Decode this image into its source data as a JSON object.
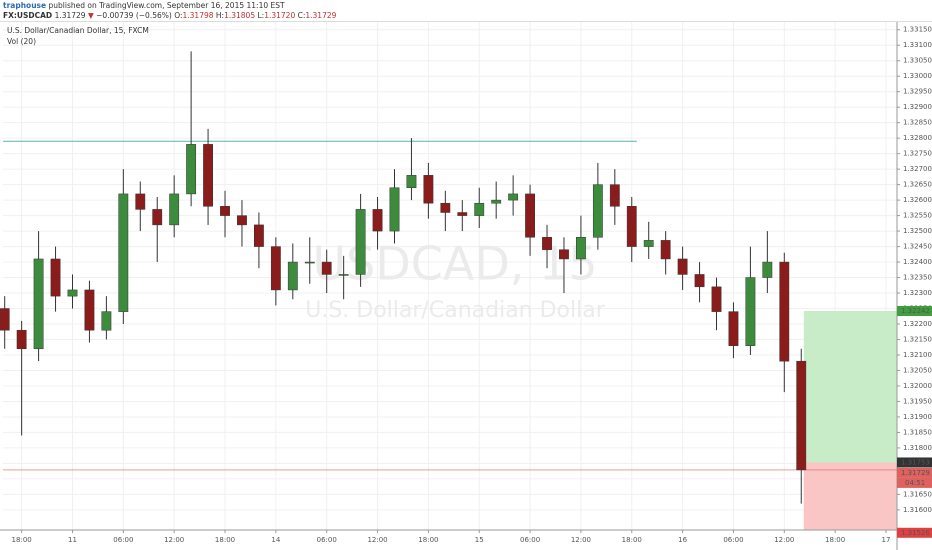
{
  "chart_data": {
    "type": "candlestick",
    "header": {
      "author": "traphouse",
      "published": "published on TradingView.com, September 16, 2015 11:10 EST",
      "symbol": "FX:USDCAD",
      "last": "1.31729",
      "arrow": "▼",
      "change": "−0.00739 (−0.56%)",
      "o_label": "O:",
      "o": "1.31798",
      "h_label": "H:",
      "h": "1.31805",
      "l_label": "L:",
      "l": "1.31720",
      "c_label": "C:",
      "c": "1.31729"
    },
    "title": "U.S. Dollar/Canadian Dollar, 15, FXCM",
    "indicator": "Vol (20)",
    "watermark": [
      "USDCAD, 15",
      "U.S. Dollar/Canadian Dollar"
    ],
    "up_color": "#3d8b3d",
    "down_color": "#8b1c1c",
    "x": [
      -2,
      0,
      2,
      4,
      6,
      8,
      10,
      12,
      14,
      16,
      18,
      20,
      22,
      24,
      26,
      28,
      30,
      32,
      34,
      36,
      38,
      40,
      42,
      44,
      46,
      48,
      50,
      52,
      54,
      56,
      58,
      60,
      62,
      64,
      66,
      68,
      70,
      72,
      74,
      76,
      78,
      80,
      82,
      84,
      86,
      88,
      90,
      92
    ],
    "open": [
      1.3225,
      1.3218,
      1.3212,
      1.3241,
      1.3229,
      1.3231,
      1.3218,
      1.3224,
      1.3262,
      1.3257,
      1.3252,
      1.3262,
      1.3278,
      1.3258,
      1.3255,
      1.3252,
      1.3245,
      1.3231,
      1.324,
      1.324,
      1.3236,
      1.3236,
      1.3257,
      1.325,
      1.3264,
      1.3268,
      1.3259,
      1.3256,
      1.3255,
      1.3259,
      1.326,
      1.3262,
      1.3248,
      1.3244,
      1.3241,
      1.3248,
      1.3265,
      1.3258,
      1.3245,
      1.3247,
      1.3241,
      1.3236,
      1.3232,
      1.3224,
      1.3213,
      1.3235,
      1.324,
      1.3208
    ],
    "high": [
      1.3229,
      1.3221,
      1.325,
      1.3245,
      1.3236,
      1.3234,
      1.3229,
      1.327,
      1.3266,
      1.3261,
      1.3268,
      1.3308,
      1.3283,
      1.3263,
      1.326,
      1.3256,
      1.3248,
      1.3246,
      1.3248,
      1.3244,
      1.3242,
      1.3262,
      1.3261,
      1.327,
      1.328,
      1.3272,
      1.3263,
      1.326,
      1.3264,
      1.3266,
      1.3268,
      1.3265,
      1.3252,
      1.3248,
      1.3255,
      1.3272,
      1.327,
      1.3261,
      1.3253,
      1.325,
      1.3245,
      1.324,
      1.3235,
      1.3227,
      1.3245,
      1.325,
      1.3243,
      1.3212
    ],
    "low": [
      1.3212,
      1.3184,
      1.3208,
      1.3224,
      1.3225,
      1.3214,
      1.3215,
      1.322,
      1.325,
      1.324,
      1.3248,
      1.3258,
      1.3252,
      1.3248,
      1.3245,
      1.3238,
      1.3226,
      1.3228,
      1.3233,
      1.323,
      1.3228,
      1.3232,
      1.3244,
      1.3246,
      1.326,
      1.3254,
      1.325,
      1.325,
      1.3251,
      1.3254,
      1.3255,
      1.3242,
      1.3238,
      1.323,
      1.3236,
      1.3244,
      1.3252,
      1.324,
      1.3241,
      1.3236,
      1.3231,
      1.3227,
      1.3218,
      1.3209,
      1.321,
      1.323,
      1.3198,
      1.3162
    ],
    "close": [
      1.3218,
      1.3212,
      1.3241,
      1.3229,
      1.3231,
      1.3218,
      1.3224,
      1.3262,
      1.3257,
      1.3252,
      1.3262,
      1.3278,
      1.3258,
      1.3255,
      1.3252,
      1.3245,
      1.3231,
      1.324,
      1.324,
      1.3236,
      1.3236,
      1.3257,
      1.325,
      1.3264,
      1.3268,
      1.3259,
      1.3256,
      1.3255,
      1.3259,
      1.326,
      1.3262,
      1.3248,
      1.3244,
      1.3241,
      1.3248,
      1.3265,
      1.3258,
      1.3245,
      1.3247,
      1.3241,
      1.3236,
      1.3232,
      1.3224,
      1.3213,
      1.3235,
      1.324,
      1.3208,
      1.31729
    ],
    "xlim": [
      -2.2,
      103.3
    ],
    "xticks": [
      {
        "value": 0,
        "label": "18:00"
      },
      {
        "value": 6,
        "label": "11"
      },
      {
        "value": 12,
        "label": "06:00"
      },
      {
        "value": 18,
        "label": "12:00"
      },
      {
        "value": 24,
        "label": "18:00"
      },
      {
        "value": 30,
        "label": "14"
      },
      {
        "value": 36,
        "label": "06:00"
      },
      {
        "value": 42,
        "label": "12:00"
      },
      {
        "value": 48,
        "label": "18:00"
      },
      {
        "value": 54,
        "label": "15"
      },
      {
        "value": 60,
        "label": "06:00"
      },
      {
        "value": 66,
        "label": "12:00"
      },
      {
        "value": 72,
        "label": "18:00"
      },
      {
        "value": 78,
        "label": "16"
      },
      {
        "value": 84,
        "label": "06:00"
      },
      {
        "value": 90,
        "label": "12:00"
      },
      {
        "value": 96,
        "label": "18:00"
      },
      {
        "value": 102,
        "label": "17"
      }
    ],
    "ylim": [
      1.31535,
      1.33175
    ],
    "yticks": [
      {
        "value": 1.316,
        "label": "1.31600"
      },
      {
        "value": 1.3165,
        "label": "1.31650"
      },
      {
        "value": 1.317,
        "label": "1.31700"
      },
      {
        "value": 1.3175,
        "label": "1.31750"
      },
      {
        "value": 1.318,
        "label": "1.31800"
      },
      {
        "value": 1.3185,
        "label": "1.31850"
      },
      {
        "value": 1.319,
        "label": "1.31900"
      },
      {
        "value": 1.3195,
        "label": "1.31950"
      },
      {
        "value": 1.32,
        "label": "1.32000"
      },
      {
        "value": 1.3205,
        "label": "1.32050"
      },
      {
        "value": 1.321,
        "label": "1.32100"
      },
      {
        "value": 1.3215,
        "label": "1.32150"
      },
      {
        "value": 1.322,
        "label": "1.32200"
      },
      {
        "value": 1.3225,
        "label": "1.32250"
      },
      {
        "value": 1.323,
        "label": "1.32300"
      },
      {
        "value": 1.3235,
        "label": "1.32350"
      },
      {
        "value": 1.324,
        "label": "1.32400"
      },
      {
        "value": 1.3245,
        "label": "1.32450"
      },
      {
        "value": 1.325,
        "label": "1.32500"
      },
      {
        "value": 1.3255,
        "label": "1.32550"
      },
      {
        "value": 1.326,
        "label": "1.32600"
      },
      {
        "value": 1.3265,
        "label": "1.32650"
      },
      {
        "value": 1.327,
        "label": "1.32700"
      },
      {
        "value": 1.3275,
        "label": "1.32750"
      },
      {
        "value": 1.328,
        "label": "1.32800"
      },
      {
        "value": 1.3285,
        "label": "1.32850"
      },
      {
        "value": 1.329,
        "label": "1.32900"
      },
      {
        "value": 1.3295,
        "label": "1.32950"
      },
      {
        "value": 1.33,
        "label": "1.33000"
      },
      {
        "value": 1.3305,
        "label": "1.33050"
      },
      {
        "value": 1.331,
        "label": "1.33100"
      },
      {
        "value": 1.3315,
        "label": "1.33150"
      }
    ],
    "grid": true,
    "hline": {
      "value": 1.3279,
      "x": [
        -2.2,
        72.6
      ],
      "color": "#5fb3a9"
    },
    "position": {
      "x_start": 92.3,
      "entry": 1.31753,
      "target": 1.32242,
      "stop": 1.31526,
      "profit_color": "#c8ecc8",
      "loss_color": "#f9c5c5"
    },
    "last_price": {
      "value": 1.31729,
      "countdown": "04:51",
      "color": "#e06060"
    }
  }
}
